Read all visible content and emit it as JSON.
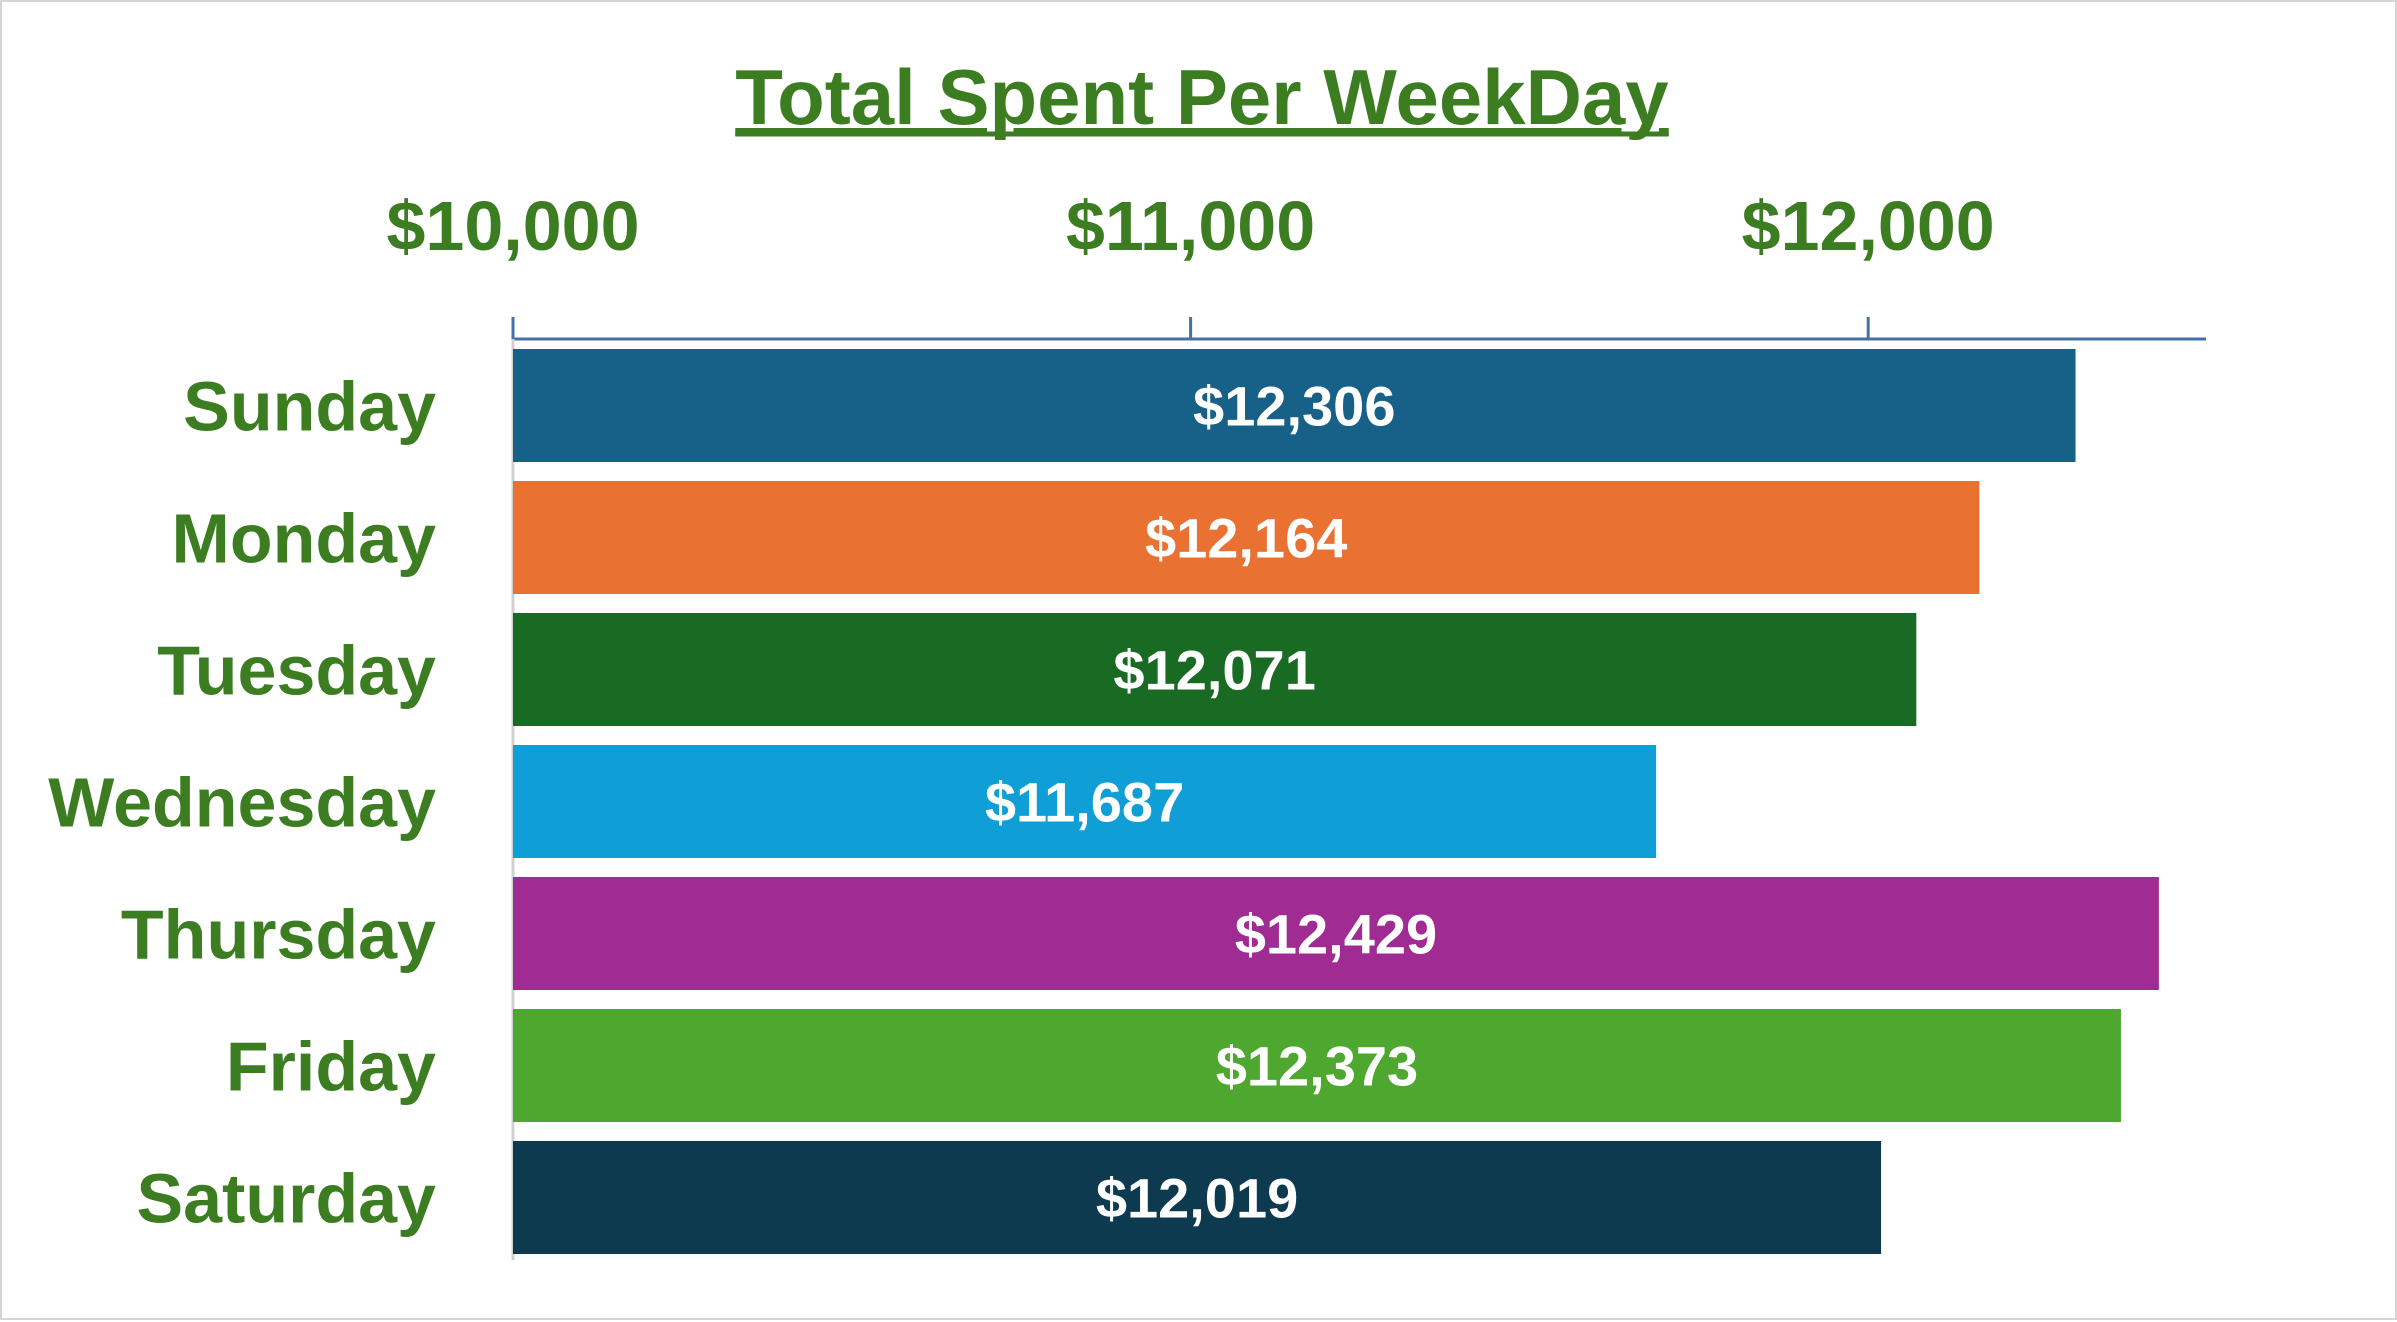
{
  "chart_data": {
    "type": "bar",
    "orientation": "horizontal",
    "title": "Total Spent Per WeekDay",
    "xlabel": "",
    "ylabel": "",
    "categories": [
      "Sunday",
      "Monday",
      "Tuesday",
      "Wednesday",
      "Thursday",
      "Friday",
      "Saturday"
    ],
    "values": [
      12306,
      12164,
      12071,
      11687,
      12429,
      12373,
      12019
    ],
    "value_labels": [
      "$12,306",
      "$12,164",
      "$12,071",
      "$11,687",
      "$12,429",
      "$12,373",
      "$12,019"
    ],
    "colors": [
      "#176087",
      "#e97132",
      "#196b24",
      "#0f9ed5",
      "#a02b93",
      "#4ea72e",
      "#0e3a50"
    ],
    "xlim": [
      10000,
      12500
    ],
    "x_ticks": [
      10000,
      11000,
      12000
    ],
    "x_tick_labels": [
      "$10,000",
      "$11,000",
      "$12,000"
    ],
    "axis_position": "top",
    "grid": false,
    "legend": "none",
    "title_color": "#3c7d22",
    "label_color": "#3c7d22",
    "axis_color": "#4472a8"
  }
}
